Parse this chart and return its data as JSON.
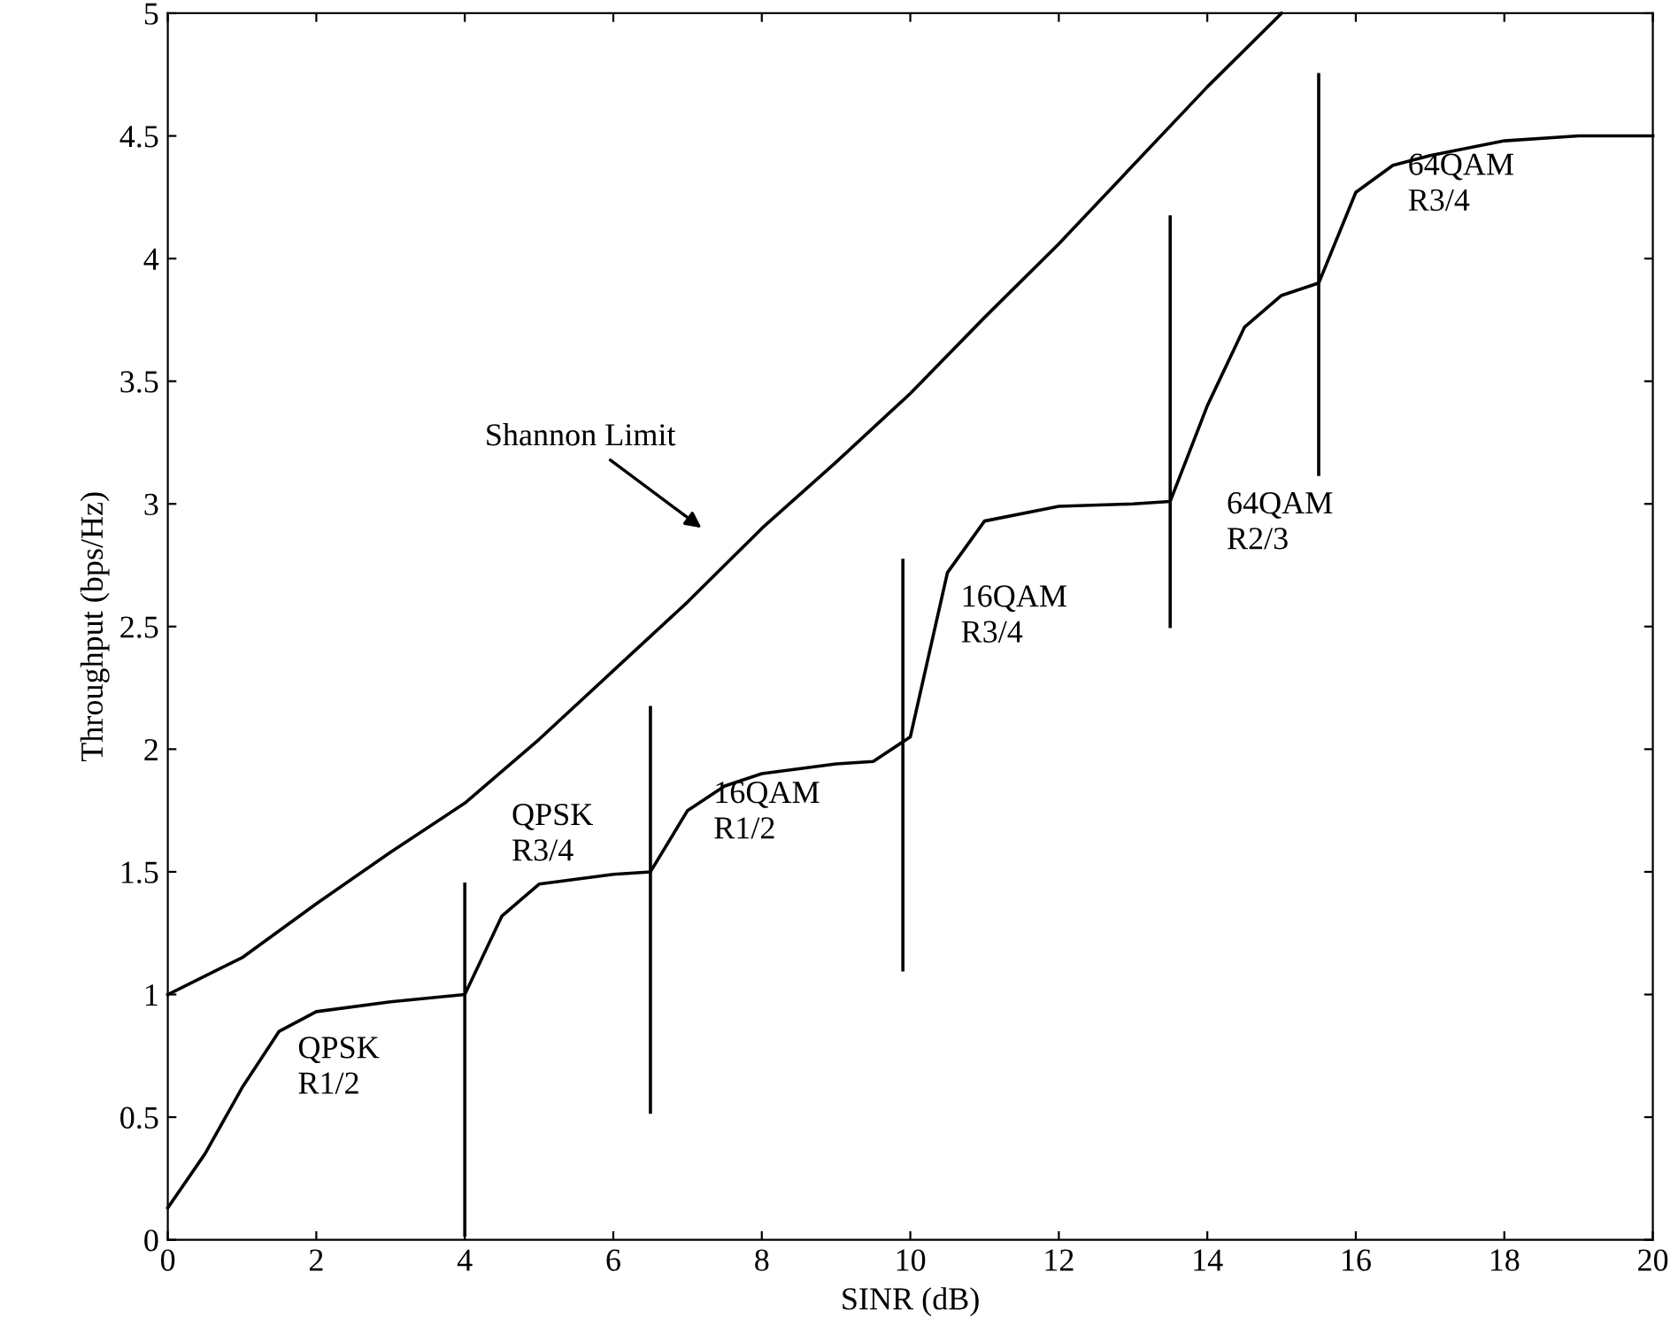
{
  "chart_data": {
    "type": "line",
    "xlabel": "SINR (dB)",
    "ylabel": "Throughput (bps/Hz)",
    "xlim": [
      0,
      20
    ],
    "ylim": [
      0,
      5
    ],
    "xticks": [
      0,
      2,
      4,
      6,
      8,
      10,
      12,
      14,
      16,
      18,
      20
    ],
    "yticks": [
      0,
      0.5,
      1,
      1.5,
      2,
      2.5,
      3,
      3.5,
      4,
      4.5,
      5
    ],
    "grid": false,
    "legend": false,
    "marker": "none",
    "line_style": "solid",
    "series": [
      {
        "color": "#000000",
        "x": [
          0,
          1,
          2,
          3,
          4,
          5,
          6,
          7,
          8,
          9,
          10,
          11,
          12,
          13,
          14,
          15
        ],
        "values": [
          1.0,
          1.15,
          1.37,
          1.58,
          1.78,
          2.04,
          2.32,
          2.6,
          2.9,
          3.17,
          3.45,
          3.76,
          4.06,
          4.38,
          4.7,
          5.0
        ]
      },
      {
        "color": "#000000",
        "x": [
          0,
          0.5,
          1,
          1.5,
          2,
          3,
          4,
          4.5,
          5,
          6,
          6.5,
          7,
          7.5,
          8,
          9,
          9.5,
          10,
          10.5,
          11,
          12,
          13,
          13.5,
          14,
          14.5,
          15,
          15.5,
          16,
          16.5,
          17,
          18,
          19,
          20
        ],
        "values": [
          0.13,
          0.35,
          0.62,
          0.85,
          0.93,
          0.97,
          1.0,
          1.32,
          1.45,
          1.49,
          1.5,
          1.75,
          1.85,
          1.9,
          1.94,
          1.95,
          2.05,
          2.72,
          2.93,
          2.99,
          3.0,
          3.01,
          3.4,
          3.72,
          3.85,
          3.9,
          4.27,
          4.38,
          4.42,
          4.48,
          4.5,
          4.5
        ]
      },
      {
        "color": "#000000",
        "x": [
          4,
          4
        ],
        "values": [
          0.02,
          1.45
        ]
      },
      {
        "color": "#000000",
        "x": [
          6.5,
          6.5
        ],
        "values": [
          0.52,
          2.17
        ]
      },
      {
        "color": "#000000",
        "x": [
          9.9,
          9.9
        ],
        "values": [
          1.1,
          2.77
        ]
      },
      {
        "color": "#000000",
        "x": [
          13.5,
          13.5
        ],
        "values": [
          2.5,
          4.17
        ]
      },
      {
        "color": "#000000",
        "x": [
          15.5,
          15.5
        ],
        "values": [
          3.12,
          4.75
        ]
      }
    ],
    "annotations": [
      "Shannon Limit",
      "QPSK\nR1/2",
      "QPSK\nR3/4",
      "16QAM\nR1/2",
      "16QAM\nR3/4",
      "64QAM\nR2/3",
      "64QAM\nR3/4"
    ]
  }
}
